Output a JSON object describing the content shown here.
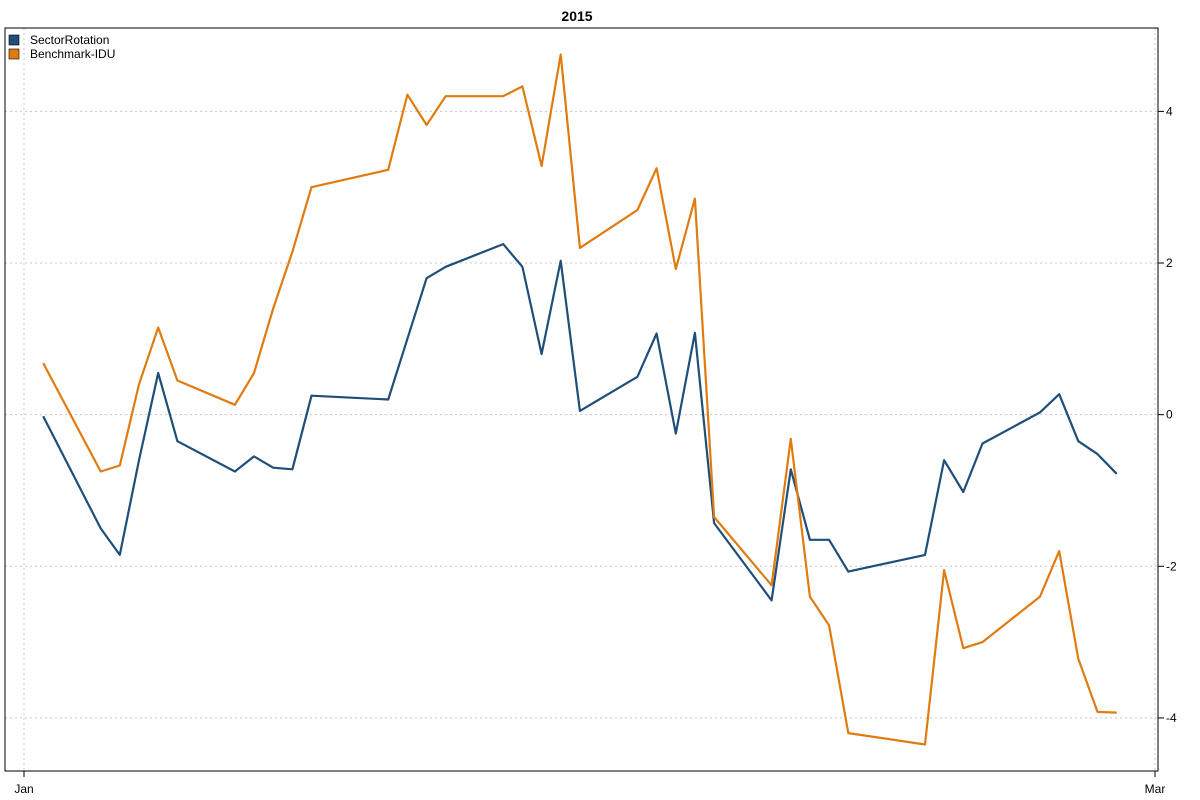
{
  "chart_data": {
    "type": "line",
    "title": "2015",
    "xlabel": "",
    "ylabel": "",
    "x_ticks": [
      "Jan",
      "Mar"
    ],
    "y_ticks": [
      4,
      2,
      0,
      -2,
      -4
    ],
    "ylim": [
      -4.7,
      5.1
    ],
    "y_axis_side": "right",
    "grid": true,
    "legend_position": "top-left",
    "x": [
      "2015-01-02",
      "2015-01-05",
      "2015-01-06",
      "2015-01-07",
      "2015-01-08",
      "2015-01-09",
      "2015-01-12",
      "2015-01-13",
      "2015-01-14",
      "2015-01-15",
      "2015-01-16",
      "2015-01-20",
      "2015-01-21",
      "2015-01-22",
      "2015-01-23",
      "2015-01-26",
      "2015-01-27",
      "2015-01-28",
      "2015-01-29",
      "2015-01-30",
      "2015-02-02",
      "2015-02-03",
      "2015-02-04",
      "2015-02-05",
      "2015-02-06",
      "2015-02-09",
      "2015-02-10",
      "2015-02-11",
      "2015-02-12",
      "2015-02-13",
      "2015-02-17",
      "2015-02-18",
      "2015-02-19",
      "2015-02-20",
      "2015-02-23",
      "2015-02-24",
      "2015-02-25",
      "2015-02-26",
      "2015-02-27"
    ],
    "series": [
      {
        "name": "SectorRotation",
        "color": "#1f4e79",
        "values": [
          -0.02,
          -1.5,
          -1.85,
          -0.6,
          0.55,
          -0.35,
          -0.75,
          -0.55,
          -0.7,
          -0.72,
          0.25,
          0.2,
          1.0,
          1.8,
          1.95,
          2.25,
          1.95,
          0.8,
          2.03,
          0.05,
          0.5,
          1.07,
          -0.25,
          1.08,
          -1.43,
          -2.45,
          -0.72,
          -1.65,
          -1.65,
          -2.07,
          -1.85,
          -0.6,
          -1.02,
          -0.38,
          0.03,
          0.27,
          -0.35,
          -0.52,
          -0.78
        ]
      },
      {
        "name": "Benchmark-IDU",
        "color": "#e07b10",
        "values": [
          0.68,
          -0.75,
          -0.67,
          0.4,
          1.15,
          0.45,
          0.13,
          0.55,
          1.4,
          2.15,
          3.0,
          3.23,
          4.22,
          3.82,
          4.2,
          4.2,
          4.33,
          3.28,
          4.75,
          2.2,
          2.7,
          3.25,
          1.92,
          2.85,
          -1.35,
          -2.25,
          -0.32,
          -2.4,
          -2.78,
          -4.2,
          -4.35,
          -2.05,
          -3.08,
          -3.0,
          -2.4,
          -1.8,
          -3.22,
          -3.92,
          -3.93
        ]
      }
    ]
  }
}
